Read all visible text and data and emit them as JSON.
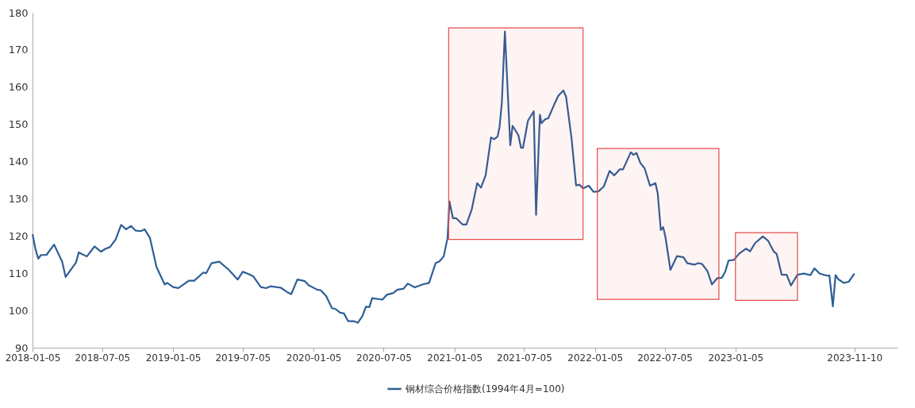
{
  "chart_data": {
    "type": "line",
    "legend": "bottom",
    "grid": false,
    "xlim": [
      "2018-01-05",
      "2024-03-01"
    ],
    "xticks": [
      {
        "value": "2018-01-05",
        "label": "2018-01-05"
      },
      {
        "value": "2018-07-05",
        "label": "2018-07-05"
      },
      {
        "value": "2019-01-05",
        "label": "2019-01-05"
      },
      {
        "value": "2019-07-05",
        "label": "2019-07-05"
      },
      {
        "value": "2020-01-05",
        "label": "2020-01-05"
      },
      {
        "value": "2020-07-05",
        "label": "2020-07-05"
      },
      {
        "value": "2021-01-05",
        "label": "2021-01-05"
      },
      {
        "value": "2021-07-05",
        "label": "2021-07-05"
      },
      {
        "value": "2022-01-05",
        "label": "2022-01-05"
      },
      {
        "value": "2022-07-05",
        "label": "2022-07-05"
      },
      {
        "value": "2023-01-05",
        "label": "2023-01-05"
      },
      {
        "value": "2023-11-10",
        "label": "2023-11-10"
      }
    ],
    "ylim": [
      90,
      180
    ],
    "yticks": [
      90,
      100,
      110,
      120,
      130,
      140,
      150,
      160,
      170,
      180
    ],
    "bands": [
      {
        "axis": "x",
        "from": "2020-12-21",
        "to": "2021-12-05",
        "color": "#e84a4a"
      },
      {
        "axis": "x",
        "from": "2022-01-11",
        "to": "2022-11-23",
        "color": "#e84a4a"
      },
      {
        "axis": "x",
        "from": "2023-01-05",
        "to": "2023-06-15",
        "color": "#e84a4a"
      }
    ],
    "series": [
      {
        "name": "钢材综合价格指数(1994年4月=100)",
        "color": "#2e5e95",
        "x": [
          "2018-01-05",
          "2018-01-13",
          "2018-01-20",
          "2018-01-27",
          "2018-02-10",
          "2018-03-02",
          "2018-03-23",
          "2018-04-01",
          "2018-04-28",
          "2018-05-05",
          "2018-05-26",
          "2018-06-15",
          "2018-07-02",
          "2018-07-14",
          "2018-07-25",
          "2018-08-09",
          "2018-08-23",
          "2018-09-05",
          "2018-09-18",
          "2018-09-29",
          "2018-10-13",
          "2018-10-23",
          "2018-11-06",
          "2018-11-23",
          "2018-12-14",
          "2018-12-21",
          "2019-01-05",
          "2019-01-19",
          "2019-02-15",
          "2019-03-01",
          "2019-03-25",
          "2019-04-01",
          "2019-04-15",
          "2019-05-05",
          "2019-05-29",
          "2019-06-22",
          "2019-07-05",
          "2019-07-18",
          "2019-08-01",
          "2019-08-21",
          "2019-09-04",
          "2019-09-15",
          "2019-10-12",
          "2019-10-29",
          "2019-11-08",
          "2019-11-24",
          "2019-12-13",
          "2019-12-23",
          "2020-01-14",
          "2020-01-24",
          "2020-02-07",
          "2020-02-22",
          "2020-03-02",
          "2020-03-14",
          "2020-03-24",
          "2020-04-04",
          "2020-04-19",
          "2020-04-29",
          "2020-05-11",
          "2020-05-20",
          "2020-05-29",
          "2020-06-05",
          "2020-07-02",
          "2020-07-13",
          "2020-07-30",
          "2020-08-10",
          "2020-08-25",
          "2020-09-06",
          "2020-09-24",
          "2020-10-15",
          "2020-10-31",
          "2020-11-17",
          "2020-11-27",
          "2020-12-08",
          "2020-12-18",
          "2020-12-23",
          "2021-01-01",
          "2021-01-09",
          "2021-01-26",
          "2021-02-05",
          "2021-02-19",
          "2021-03-05",
          "2021-03-15",
          "2021-03-27",
          "2021-04-10",
          "2021-04-18",
          "2021-04-27",
          "2021-05-02",
          "2021-05-08",
          "2021-05-16",
          "2021-05-30",
          "2021-06-05",
          "2021-06-20",
          "2021-06-27",
          "2021-07-02",
          "2021-07-15",
          "2021-07-30",
          "2021-08-05",
          "2021-08-15",
          "2021-08-19",
          "2021-08-28",
          "2021-09-06",
          "2021-09-21",
          "2021-10-02",
          "2021-10-15",
          "2021-10-22",
          "2021-11-05",
          "2021-11-17",
          "2021-11-26",
          "2021-12-05",
          "2021-12-20",
          "2022-01-01",
          "2022-01-14",
          "2022-01-28",
          "2022-02-12",
          "2022-02-24",
          "2022-03-10",
          "2022-03-19",
          "2022-04-08",
          "2022-04-15",
          "2022-04-23",
          "2022-05-03",
          "2022-05-14",
          "2022-05-28",
          "2022-06-11",
          "2022-06-17",
          "2022-06-25",
          "2022-07-01",
          "2022-07-07",
          "2022-07-20",
          "2022-08-06",
          "2022-08-23",
          "2022-09-02",
          "2022-09-20",
          "2022-09-30",
          "2022-10-10",
          "2022-10-24",
          "2022-11-05",
          "2022-11-19",
          "2022-12-01",
          "2022-12-10",
          "2022-12-18",
          "2023-01-01",
          "2023-01-15",
          "2023-02-01",
          "2023-02-12",
          "2023-02-25",
          "2023-03-17",
          "2023-03-31",
          "2023-04-14",
          "2023-04-22",
          "2023-05-05",
          "2023-05-18",
          "2023-05-29",
          "2023-06-15",
          "2023-07-02",
          "2023-07-19",
          "2023-07-29",
          "2023-08-12",
          "2023-08-29",
          "2023-09-06",
          "2023-09-15",
          "2023-09-22",
          "2023-09-29",
          "2023-10-13",
          "2023-10-26",
          "2023-11-10"
        ],
        "values": [
          120.5,
          116.3,
          113.9,
          114.9,
          114.9,
          117.7,
          113.1,
          109.0,
          112.9,
          115.6,
          114.5,
          117.2,
          115.8,
          116.6,
          117.0,
          119.1,
          123.0,
          121.8,
          122.7,
          121.5,
          121.3,
          121.8,
          119.5,
          111.7,
          107.0,
          107.4,
          106.3,
          106.0,
          108.0,
          108.0,
          110.2,
          110.0,
          112.7,
          113.1,
          111.0,
          108.3,
          110.4,
          109.9,
          109.2,
          106.3,
          106.0,
          106.5,
          106.1,
          104.9,
          104.4,
          108.3,
          107.9,
          106.8,
          105.6,
          105.4,
          103.8,
          100.6,
          100.4,
          99.4,
          99.2,
          97.1,
          97.1,
          96.7,
          98.5,
          101.0,
          100.9,
          103.3,
          102.9,
          104.2,
          104.7,
          105.6,
          105.8,
          107.2,
          106.2,
          107.0,
          107.4,
          112.7,
          113.2,
          114.5,
          119.4,
          129.3,
          124.8,
          124.8,
          123.1,
          123.1,
          127.2,
          134.2,
          133.0,
          136.3,
          146.5,
          146.0,
          146.7,
          149.2,
          155.7,
          174.9,
          144.4,
          149.6,
          147.1,
          143.7,
          143.7,
          151.0,
          153.5,
          125.7,
          152.6,
          150.3,
          151.3,
          151.7,
          155.3,
          157.7,
          159.1,
          157.4,
          146.4,
          133.6,
          133.8,
          132.8,
          133.5,
          131.9,
          132.0,
          133.3,
          137.5,
          136.3,
          137.9,
          137.9,
          142.5,
          141.8,
          142.3,
          139.6,
          138.2,
          133.5,
          134.2,
          131.5,
          121.6,
          122.4,
          119.8,
          110.9,
          114.6,
          114.3,
          112.7,
          112.3,
          112.7,
          112.5,
          110.6,
          107.0,
          108.7,
          108.8,
          110.6,
          113.4,
          113.6,
          115.3,
          116.6,
          115.9,
          118.1,
          119.9,
          118.7,
          115.9,
          115.2,
          109.6,
          109.6,
          106.7,
          109.6,
          109.9,
          109.5,
          111.3,
          109.9,
          109.4,
          109.4,
          101.1,
          109.5,
          108.4,
          107.4,
          107.7,
          109.9
        ]
      }
    ]
  }
}
